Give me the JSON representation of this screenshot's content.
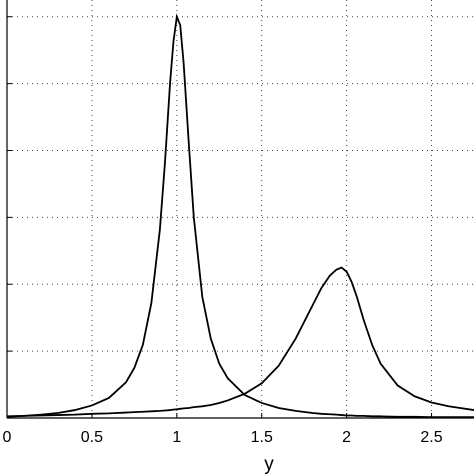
{
  "chart_data": {
    "type": "line",
    "title": "",
    "xlabel": "y",
    "ylabel": "",
    "xlim": [
      0,
      2.75
    ],
    "ylim": [
      0,
      1.0
    ],
    "grid": true,
    "x_ticks": [
      0,
      0.5,
      1,
      1.5,
      2,
      2.5
    ],
    "x_tick_labels": [
      "0",
      "0.5",
      "1",
      "1.5",
      "2",
      "2.5"
    ],
    "y_ticks": [
      0.16,
      0.32,
      0.48,
      0.64,
      0.8,
      0.96
    ],
    "x": [
      0,
      0.1,
      0.2,
      0.3,
      0.4,
      0.5,
      0.6,
      0.7,
      0.75,
      0.8,
      0.85,
      0.9,
      0.93,
      0.96,
      0.98,
      1.0,
      1.02,
      1.04,
      1.07,
      1.1,
      1.15,
      1.2,
      1.25,
      1.3,
      1.4,
      1.5,
      1.6,
      1.7,
      1.8,
      1.85,
      1.9,
      1.94,
      1.97,
      2.0,
      2.03,
      2.06,
      2.1,
      2.15,
      2.2,
      2.3,
      2.4,
      2.5,
      2.6,
      2.75
    ],
    "series": [
      {
        "values": [
          0.003,
          0.005,
          0.008,
          0.012,
          0.019,
          0.03,
          0.048,
          0.085,
          0.12,
          0.175,
          0.275,
          0.45,
          0.61,
          0.8,
          0.9,
          0.96,
          0.94,
          0.85,
          0.66,
          0.48,
          0.29,
          0.19,
          0.13,
          0.095,
          0.055,
          0.036,
          0.024,
          0.017,
          0.012,
          0.01,
          0.009,
          0.008,
          0.007,
          0.006,
          0.006,
          0.005,
          0.005,
          0.004,
          0.004,
          0.003,
          0.003,
          0.002,
          0.002,
          0.002
        ]
      },
      {
        "values": [
          0.004,
          0.005,
          0.006,
          0.007,
          0.008,
          0.01,
          0.011,
          0.013,
          0.014,
          0.015,
          0.016,
          0.017,
          0.018,
          0.019,
          0.02,
          0.021,
          0.022,
          0.023,
          0.024,
          0.026,
          0.028,
          0.031,
          0.036,
          0.042,
          0.058,
          0.083,
          0.125,
          0.19,
          0.27,
          0.31,
          0.34,
          0.355,
          0.36,
          0.35,
          0.325,
          0.29,
          0.235,
          0.175,
          0.13,
          0.078,
          0.052,
          0.037,
          0.028,
          0.019
        ]
      }
    ]
  }
}
